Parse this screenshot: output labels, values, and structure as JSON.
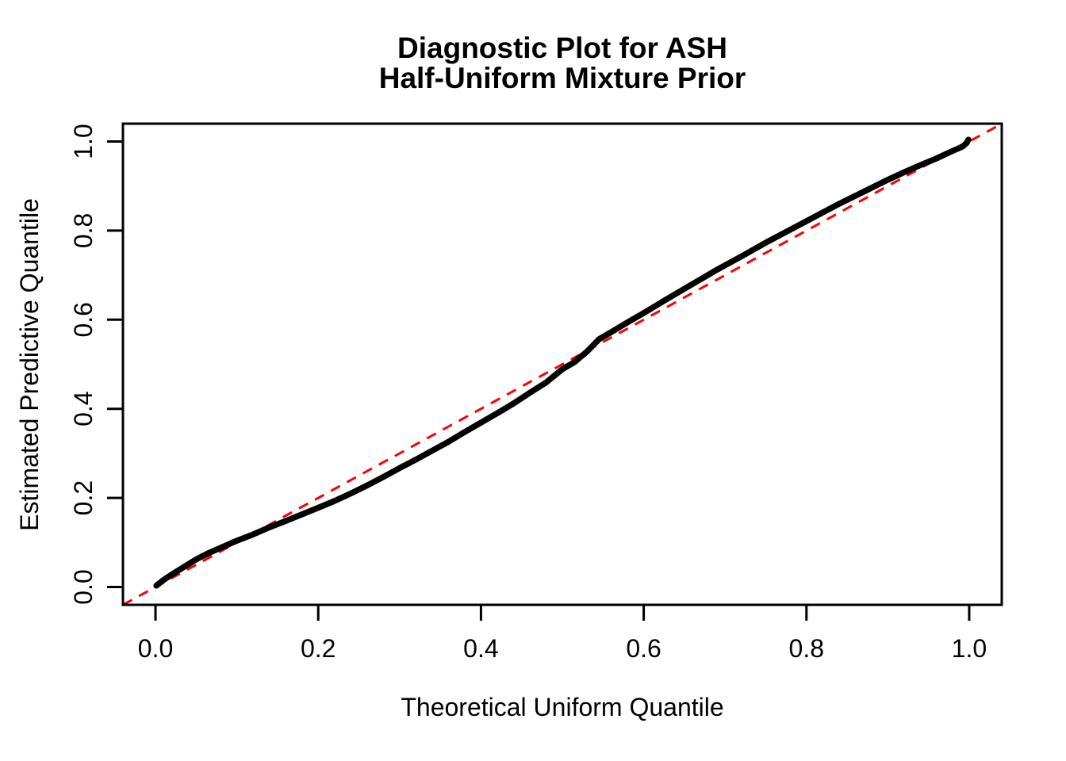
{
  "chart_data": {
    "type": "line",
    "title": "Diagnostic Plot for ASH\nHalf-Uniform Mixture Prior",
    "title_line1": "Diagnostic Plot for ASH",
    "title_line2": "Half-Uniform Mixture Prior",
    "xlabel": "Theoretical Uniform Quantile",
    "ylabel": "Estimated Predictive Quantile",
    "xlim": [
      -0.04,
      1.04
    ],
    "ylim": [
      -0.04,
      1.04
    ],
    "grid": false,
    "legend": "none",
    "background_color": "#FFFFFF",
    "axis_color": "#000000",
    "x_ticks": {
      "values": [
        0.0,
        0.2,
        0.4,
        0.6,
        0.8,
        1.0
      ],
      "labels": [
        "0.0",
        "0.2",
        "0.4",
        "0.6",
        "0.8",
        "1.0"
      ]
    },
    "y_ticks": {
      "values": [
        0.0,
        0.2,
        0.4,
        0.6,
        0.8,
        1.0
      ],
      "labels": [
        "0.0",
        "0.2",
        "0.4",
        "0.6",
        "0.8",
        "1.0"
      ]
    },
    "series": [
      {
        "name": "identity-reference-line",
        "role": "reference y = x",
        "color": "#FF0000",
        "line_style": "dashed",
        "line_width": 3,
        "x": [
          -0.04,
          1.04
        ],
        "y": [
          -0.04,
          1.04
        ]
      },
      {
        "name": "predictive-quantile-curve",
        "role": "estimated predictive quantile vs theoretical uniform quantile",
        "color": "#000000",
        "line_style": "solid",
        "line_width": 7.5,
        "x": [
          0.001,
          0.01,
          0.02,
          0.035,
          0.05,
          0.065,
          0.08,
          0.09,
          0.1,
          0.12,
          0.14,
          0.16,
          0.18,
          0.2,
          0.22,
          0.24,
          0.26,
          0.28,
          0.3,
          0.32,
          0.34,
          0.36,
          0.38,
          0.4,
          0.42,
          0.44,
          0.46,
          0.48,
          0.5,
          0.515,
          0.53,
          0.545,
          0.56,
          0.58,
          0.6,
          0.63,
          0.66,
          0.69,
          0.72,
          0.75,
          0.78,
          0.81,
          0.84,
          0.87,
          0.9,
          0.92,
          0.94,
          0.96,
          0.975,
          0.985,
          0.992,
          0.997,
          0.999
        ],
        "y": [
          0.003,
          0.016,
          0.028,
          0.045,
          0.062,
          0.076,
          0.088,
          0.096,
          0.104,
          0.118,
          0.134,
          0.148,
          0.163,
          0.178,
          0.193,
          0.21,
          0.228,
          0.247,
          0.267,
          0.286,
          0.306,
          0.326,
          0.348,
          0.369,
          0.39,
          0.412,
          0.436,
          0.459,
          0.489,
          0.505,
          0.528,
          0.556,
          0.572,
          0.594,
          0.615,
          0.648,
          0.68,
          0.712,
          0.742,
          0.773,
          0.802,
          0.831,
          0.86,
          0.887,
          0.914,
          0.931,
          0.947,
          0.962,
          0.975,
          0.983,
          0.989,
          0.997,
          1.004
        ]
      }
    ]
  }
}
